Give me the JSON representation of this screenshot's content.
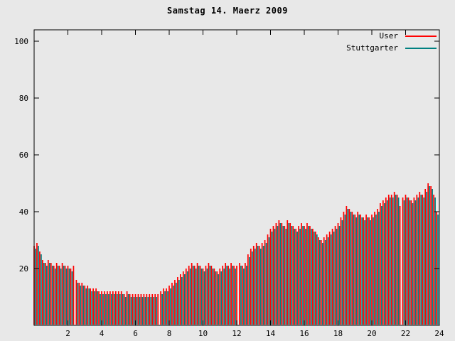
{
  "title": "Samstag 14. Maerz 2009",
  "chart_data": {
    "type": "bar",
    "title": "Samstag 14. Maerz 2009",
    "x_start": 0,
    "x_step_hours": 0.1666667,
    "xlim": [
      0,
      24
    ],
    "ylim": [
      0,
      104
    ],
    "xticks": [
      2,
      4,
      6,
      8,
      10,
      12,
      14,
      16,
      18,
      20,
      22,
      24
    ],
    "yticks": [
      20,
      40,
      60,
      80,
      100
    ],
    "background": "#e8e8e8",
    "axis_color": "#000000",
    "legend_position": "top-right",
    "series": [
      {
        "name": "User",
        "color": "#ff0000",
        "values": [
          28,
          29,
          26,
          23,
          22,
          23,
          22,
          21,
          22,
          21,
          22,
          21,
          21,
          20,
          21,
          16,
          15,
          15,
          14,
          14,
          13,
          13,
          13,
          12,
          12,
          12,
          12,
          12,
          12,
          12,
          12,
          12,
          11,
          12,
          11,
          11,
          11,
          11,
          11,
          11,
          11,
          11,
          11,
          11,
          11,
          12,
          13,
          13,
          14,
          15,
          16,
          17,
          18,
          19,
          20,
          21,
          22,
          21,
          22,
          21,
          20,
          21,
          22,
          21,
          20,
          19,
          20,
          21,
          22,
          21,
          22,
          21,
          21,
          22,
          21,
          22,
          25,
          27,
          28,
          29,
          28,
          29,
          30,
          32,
          34,
          35,
          36,
          37,
          36,
          35,
          37,
          36,
          35,
          34,
          35,
          36,
          35,
          36,
          35,
          34,
          33,
          31,
          30,
          31,
          32,
          33,
          34,
          35,
          36,
          38,
          40,
          42,
          41,
          40,
          39,
          40,
          39,
          38,
          39,
          38,
          39,
          40,
          41,
          43,
          44,
          45,
          46,
          46,
          47,
          46,
          42,
          45,
          46,
          45,
          44,
          45,
          46,
          47,
          46,
          48,
          50,
          49,
          46,
          40
        ]
      },
      {
        "name": "Stuttgarter",
        "color": "#008080",
        "values": [
          27,
          28,
          25,
          22,
          21,
          22,
          21,
          20,
          21,
          20,
          21,
          20,
          20,
          19,
          0,
          15,
          14,
          14,
          13,
          13,
          12,
          12,
          12,
          11,
          11,
          11,
          11,
          11,
          11,
          11,
          11,
          11,
          10,
          11,
          10,
          10,
          10,
          10,
          10,
          10,
          10,
          10,
          10,
          10,
          0,
          11,
          12,
          12,
          13,
          14,
          15,
          16,
          17,
          18,
          19,
          20,
          21,
          20,
          21,
          20,
          19,
          20,
          21,
          20,
          19,
          18,
          19,
          20,
          21,
          20,
          21,
          20,
          0,
          21,
          20,
          21,
          24,
          26,
          27,
          28,
          27,
          28,
          29,
          31,
          33,
          34,
          35,
          36,
          35,
          34,
          36,
          35,
          34,
          33,
          34,
          35,
          34,
          35,
          34,
          33,
          32,
          30,
          29,
          30,
          31,
          32,
          33,
          34,
          35,
          37,
          39,
          41,
          40,
          39,
          38,
          39,
          38,
          37,
          38,
          37,
          38,
          39,
          40,
          42,
          43,
          44,
          45,
          45,
          46,
          45,
          0,
          44,
          45,
          44,
          43,
          44,
          45,
          46,
          45,
          47,
          49,
          48,
          45,
          39
        ]
      }
    ]
  }
}
